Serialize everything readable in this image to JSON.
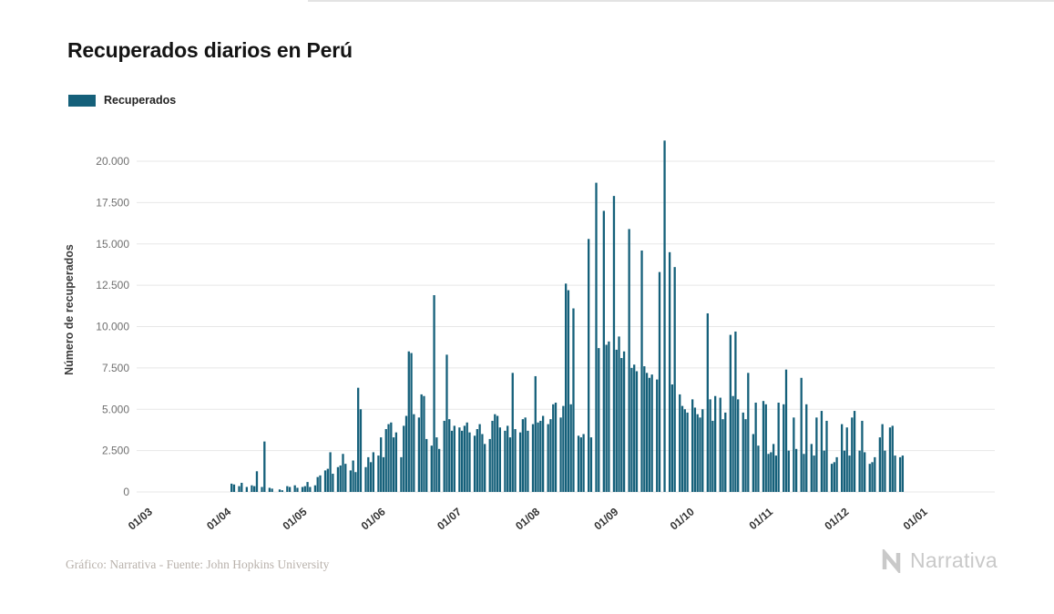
{
  "footer": {
    "credit": "Gráfico: Narrativa - Fuente: John Hopkins University",
    "brand": "Narrativa"
  },
  "chart_data": {
    "type": "bar",
    "title": "Recuperados diarios en Perú",
    "xlabel": "",
    "ylabel": "Número de recuperados",
    "ylim": [
      0,
      21500
    ],
    "grid": "horizontal",
    "legend_position": "top-left",
    "bar_color": "#15607a",
    "y_ticks": [
      0,
      2500,
      5000,
      7500,
      10000,
      12500,
      15000,
      17500,
      20000
    ],
    "y_tick_labels": [
      "0",
      "2.500",
      "5.000",
      "7.500",
      "10.000",
      "12.500",
      "15.000",
      "17.500",
      "20.000"
    ],
    "x_tick_labels": [
      "01/03",
      "01/04",
      "01/05",
      "01/06",
      "01/07",
      "01/08",
      "01/09",
      "01/10",
      "01/11",
      "01/12",
      "01/01"
    ],
    "x_tick_day_index": [
      0,
      31,
      61,
      92,
      122,
      153,
      184,
      214,
      245,
      275,
      306
    ],
    "series": [
      {
        "name": "Recuperados",
        "start_date": "01/03/2020",
        "values": [
          0,
          0,
          0,
          0,
          0,
          0,
          0,
          0,
          0,
          0,
          0,
          0,
          0,
          0,
          0,
          0,
          0,
          0,
          0,
          0,
          0,
          0,
          0,
          0,
          0,
          0,
          0,
          0,
          0,
          0,
          0,
          500,
          450,
          0,
          350,
          550,
          0,
          300,
          0,
          400,
          350,
          1250,
          0,
          300,
          3050,
          0,
          250,
          200,
          0,
          0,
          150,
          100,
          0,
          350,
          300,
          0,
          400,
          250,
          0,
          300,
          350,
          600,
          300,
          0,
          400,
          900,
          1000,
          0,
          1300,
          1400,
          2400,
          1100,
          0,
          1500,
          1600,
          2300,
          1700,
          0,
          1300,
          1900,
          1200,
          6300,
          5000,
          0,
          1500,
          2100,
          1800,
          2400,
          0,
          2200,
          3300,
          2100,
          3800,
          4100,
          4200,
          3300,
          3600,
          0,
          2100,
          4000,
          4600,
          8500,
          8400,
          4700,
          0,
          4500,
          5900,
          5800,
          3200,
          0,
          2800,
          11900,
          3300,
          2600,
          0,
          4300,
          8300,
          4400,
          3700,
          4000,
          0,
          3900,
          3700,
          4000,
          4200,
          3600,
          0,
          3400,
          3800,
          4100,
          3500,
          2900,
          0,
          3200,
          4300,
          4700,
          4600,
          3900,
          0,
          3700,
          4000,
          3300,
          7200,
          3800,
          0,
          3600,
          4400,
          4500,
          3700,
          0,
          4100,
          7000,
          4200,
          4300,
          4600,
          0,
          4100,
          4400,
          5300,
          5400,
          0,
          4500,
          5200,
          12600,
          12200,
          5300,
          11100,
          0,
          3400,
          3300,
          3500,
          0,
          15300,
          3300,
          0,
          18700,
          8700,
          0,
          17000,
          8900,
          9100,
          0,
          17900,
          8600,
          9400,
          8100,
          8500,
          0,
          15900,
          7500,
          7700,
          7300,
          0,
          14600,
          7600,
          7200,
          6900,
          7100,
          0,
          6800,
          13300,
          0,
          21250,
          0,
          14500,
          6500,
          13600,
          0,
          5900,
          5200,
          5000,
          4800,
          0,
          5600,
          5100,
          4700,
          4500,
          5000,
          0,
          10800,
          5600,
          4300,
          5800,
          0,
          5700,
          4400,
          4800,
          0,
          9500,
          5800,
          9700,
          5600,
          0,
          4800,
          4400,
          7200,
          0,
          3500,
          5400,
          2800,
          0,
          5500,
          5300,
          2300,
          2400,
          2900,
          2200,
          5400,
          0,
          5300,
          7400,
          2500,
          0,
          4500,
          2600,
          0,
          6900,
          2300,
          5300,
          0,
          2900,
          2200,
          4500,
          0,
          4900,
          2500,
          4300,
          0,
          1700,
          1800,
          2100,
          0,
          4100,
          2500,
          3900,
          2200,
          4500,
          4900,
          0,
          2500,
          4300,
          2400,
          0,
          1700,
          1800,
          2100,
          0,
          3300,
          4100,
          2500,
          0,
          3900,
          4000,
          2200,
          0,
          2100,
          2200,
          0,
          0,
          0,
          0,
          0,
          0,
          0,
          0,
          0
        ]
      }
    ]
  }
}
